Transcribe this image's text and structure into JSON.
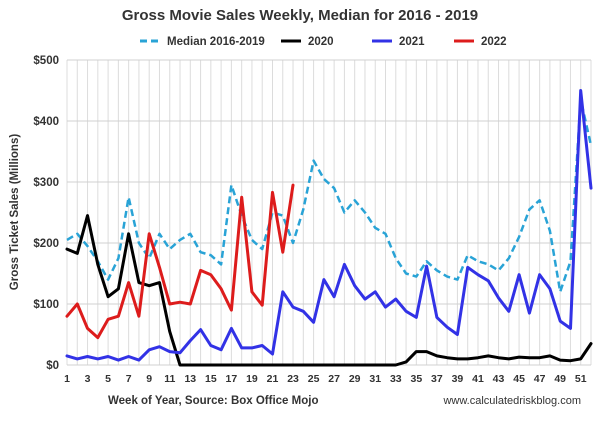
{
  "chart_data": {
    "type": "line",
    "title": "Gross Movie Sales Weekly, Median for 2016 - 2019",
    "ylabel": "Gross Ticket Sales (Millions)",
    "xlabel": "Week of Year, Source: Box Office Mojo",
    "credit": "www.calculatedriskblog.com",
    "xlim": [
      1,
      52
    ],
    "ylim": [
      0,
      500
    ],
    "x_ticks": [
      1,
      3,
      5,
      7,
      9,
      11,
      13,
      15,
      17,
      19,
      21,
      23,
      25,
      27,
      29,
      31,
      33,
      35,
      37,
      39,
      41,
      43,
      45,
      47,
      49,
      51
    ],
    "y_ticks": [
      {
        "value": 0,
        "label": "$0"
      },
      {
        "value": 100,
        "label": "$100"
      },
      {
        "value": 200,
        "label": "$200"
      },
      {
        "value": 300,
        "label": "$300"
      },
      {
        "value": 400,
        "label": "$400"
      },
      {
        "value": 500,
        "label": "$500"
      }
    ],
    "grid": true,
    "legend": "top",
    "series": [
      {
        "name": "Median 2016-2019",
        "color": "#29a3d6",
        "dashed": true,
        "x": [
          1,
          2,
          3,
          4,
          5,
          6,
          7,
          8,
          9,
          10,
          11,
          12,
          13,
          14,
          15,
          16,
          17,
          18,
          19,
          20,
          21,
          22,
          23,
          24,
          25,
          26,
          27,
          28,
          29,
          30,
          31,
          32,
          33,
          34,
          35,
          36,
          37,
          38,
          39,
          40,
          41,
          42,
          43,
          44,
          45,
          46,
          47,
          48,
          49,
          50,
          51,
          52
        ],
        "values": [
          205,
          215,
          195,
          170,
          140,
          175,
          275,
          200,
          175,
          215,
          190,
          205,
          215,
          185,
          180,
          165,
          295,
          245,
          205,
          190,
          250,
          245,
          200,
          255,
          335,
          305,
          290,
          250,
          270,
          250,
          225,
          215,
          175,
          150,
          145,
          170,
          155,
          145,
          140,
          180,
          170,
          165,
          155,
          175,
          210,
          255,
          270,
          220,
          120,
          170,
          435,
          360
        ]
      },
      {
        "name": "2020",
        "color": "#000000",
        "dashed": false,
        "x": [
          1,
          2,
          3,
          4,
          5,
          6,
          7,
          8,
          9,
          10,
          11,
          12,
          13,
          14,
          15,
          16,
          17,
          18,
          19,
          20,
          21,
          22,
          23,
          24,
          25,
          26,
          27,
          28,
          29,
          30,
          31,
          32,
          33,
          34,
          35,
          36,
          37,
          38,
          39,
          40,
          41,
          42,
          43,
          44,
          45,
          46,
          47,
          48,
          49,
          50,
          51,
          52
        ],
        "values": [
          190,
          183,
          245,
          165,
          112,
          125,
          215,
          135,
          130,
          135,
          55,
          0,
          0,
          0,
          0,
          0,
          0,
          0,
          0,
          0,
          0,
          0,
          0,
          0,
          0,
          0,
          0,
          0,
          0,
          0,
          0,
          0,
          0,
          5,
          22,
          22,
          15,
          12,
          10,
          10,
          12,
          15,
          12,
          10,
          13,
          12,
          12,
          15,
          8,
          7,
          10,
          35
        ]
      },
      {
        "name": "2021",
        "color": "#3232e6",
        "dashed": false,
        "x": [
          1,
          2,
          3,
          4,
          5,
          6,
          7,
          8,
          9,
          10,
          11,
          12,
          13,
          14,
          15,
          16,
          17,
          18,
          19,
          20,
          21,
          22,
          23,
          24,
          25,
          26,
          27,
          28,
          29,
          30,
          31,
          32,
          33,
          34,
          35,
          36,
          37,
          38,
          39,
          40,
          41,
          42,
          43,
          44,
          45,
          46,
          47,
          48,
          49,
          50,
          51,
          52
        ],
        "values": [
          15,
          10,
          14,
          10,
          14,
          8,
          14,
          8,
          25,
          30,
          22,
          20,
          40,
          58,
          32,
          25,
          60,
          28,
          28,
          32,
          18,
          120,
          95,
          88,
          70,
          140,
          112,
          165,
          130,
          108,
          120,
          95,
          108,
          88,
          78,
          162,
          78,
          62,
          50,
          160,
          148,
          138,
          110,
          88,
          148,
          85,
          148,
          125,
          72,
          60,
          450,
          290
        ]
      },
      {
        "name": "2022",
        "color": "#dd1c1c",
        "dashed": false,
        "x": [
          1,
          2,
          3,
          4,
          5,
          6,
          7,
          8,
          9,
          10,
          11,
          12,
          13,
          14,
          15,
          16,
          17,
          18,
          19,
          20,
          21,
          22,
          23
        ],
        "values": [
          80,
          100,
          60,
          45,
          75,
          80,
          135,
          80,
          215,
          160,
          100,
          103,
          100,
          155,
          148,
          125,
          90,
          275,
          120,
          98,
          283,
          185,
          295
        ]
      }
    ]
  }
}
